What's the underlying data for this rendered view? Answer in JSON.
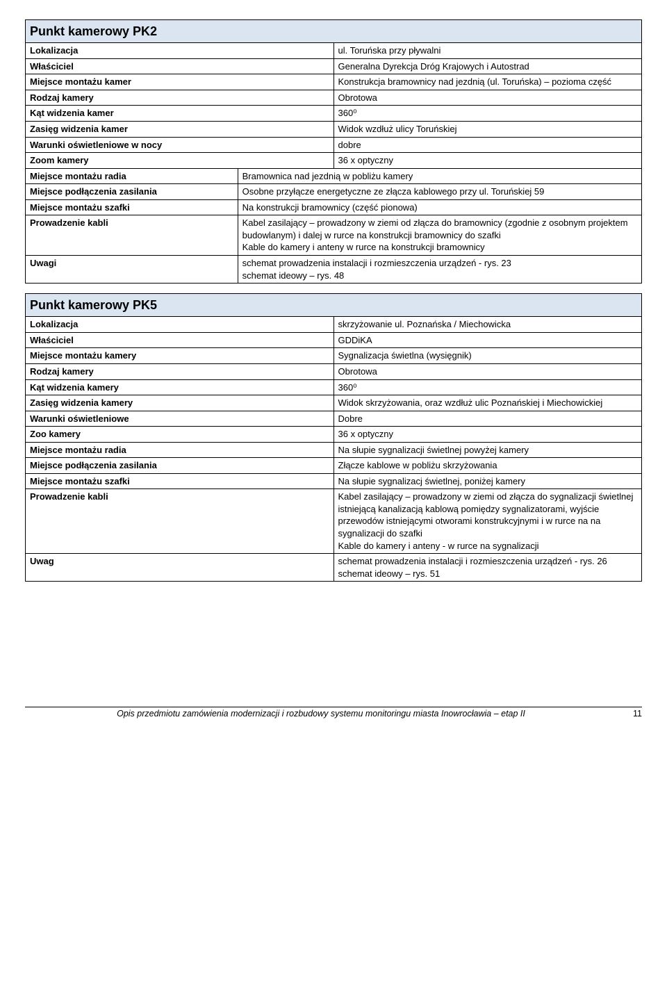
{
  "pk2": {
    "title": "Punkt kamerowy PK2",
    "rows": [
      {
        "label": "Lokalizacja",
        "value": "ul. Toruńska przy pływalni"
      },
      {
        "label": "Właściciel",
        "value": "Generalna Dyrekcja Dróg Krajowych i Autostrad"
      },
      {
        "label": "Miejsce montażu kamer",
        "value": "Konstrukcja bramownicy nad jezdnią (ul. Toruńska) – pozioma część"
      },
      {
        "label": "Rodzaj kamery",
        "value": "Obrotowa"
      },
      {
        "label": "Kąt widzenia kamer",
        "value": "360⁰"
      },
      {
        "label": "Zasięg widzenia kamer",
        "value": " Widok wzdłuż ulicy Toruńskiej"
      },
      {
        "label": "Warunki oświetleniowe w nocy",
        "value": "dobre"
      },
      {
        "label": "Zoom kamery",
        "value": "36 x optyczny"
      }
    ],
    "rows2": [
      {
        "label": "Miejsce montażu radia",
        "value": "Bramownica nad jezdnią w pobliżu kamery"
      },
      {
        "label": "Miejsce podłączenia zasilania",
        "value": "Osobne przyłącze energetyczne ze złącza kablowego przy ul. Toruńskiej 59"
      },
      {
        "label": "Miejsce montażu szafki",
        "value": "Na konstrukcji bramownicy (część pionowa)"
      },
      {
        "label": "Prowadzenie kabli",
        "value": "Kabel zasilający – prowadzony w ziemi od złącza do bramownicy (zgodnie z osobnym projektem budowlanym) i dalej  w rurce na konstrukcji bramownicy do szafki\nKable do kamery i anteny w rurce na konstrukcji bramownicy"
      },
      {
        "label": "Uwagi",
        "value": "schemat prowadzenia instalacji i rozmieszczenia urządzeń - rys. 23\nschemat ideowy – rys. 48"
      }
    ]
  },
  "pk5": {
    "title": "Punkt kamerowy PK5",
    "rows": [
      {
        "label": "Lokalizacja",
        "value": "skrzyżowanie ul. Poznańska / Miechowicka"
      },
      {
        "label": "Właściciel",
        "value": "GDDiKA"
      },
      {
        "label": "Miejsce montażu kamery",
        "value": "Sygnalizacja świetlna (wysięgnik)"
      },
      {
        "label": "Rodzaj kamery",
        "value": "Obrotowa"
      },
      {
        "label": "Kąt widzenia kamery",
        "value": "360⁰"
      },
      {
        "label": "Zasięg widzenia kamery",
        "value": " Widok skrzyżowania, oraz wzdłuż ulic Poznańskiej i Miechowickiej"
      },
      {
        "label": "Warunki oświetleniowe",
        "value": "Dobre"
      },
      {
        "label": "Zoo    kamery",
        "value": "36 x optyczny"
      },
      {
        "label": "Miejsce montażu radia",
        "value": "Na słupie sygnalizacji świetlnej powyżej kamery"
      },
      {
        "label": "Miejsce podłączenia zasilania",
        "value": "Złącze kablowe w pobliżu skrzyżowania"
      },
      {
        "label": "Miejsce montażu szafki",
        "value": "Na słupie sygnalizacj świetlnej, poniżej kamery"
      },
      {
        "label": "Prowadzenie kabli",
        "value": "Kabel zasilający – prowadzony w ziemi od złącza do sygnalizacji świetlnej istniejącą kanalizacją kablową pomiędzy sygnalizatorami, wyjście przewodów istniejącymi otworami konstrukcyjnymi i  w rurce na na sygnalizacji do szafki\nKable do kamery i anteny - w rurce na sygnalizacji"
      },
      {
        "label": "Uwag",
        "value": "schemat prowadzenia instalacji i rozmieszczenia urządzeń - rys. 26\nschemat ideowy – rys. 51"
      }
    ]
  },
  "footer": {
    "text": "Opis przedmiotu zamówienia modernizacji i rozbudowy systemu monitoringu miasta Inowrocławia – etap II",
    "page": "11"
  }
}
